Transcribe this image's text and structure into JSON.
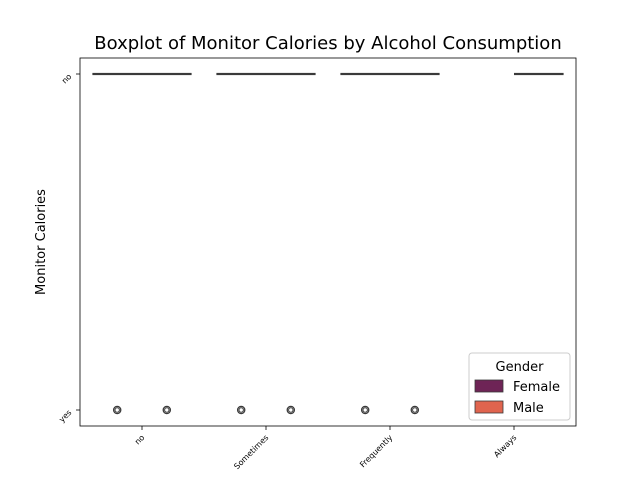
{
  "chart_data": {
    "type": "box",
    "title": "Boxplot of Monitor Calories by Alcohol Consumption",
    "xlabel": "",
    "ylabel": "Monitor Calories",
    "categories": [
      "no",
      "Sometimes",
      "Frequently",
      "Always"
    ],
    "y_categories": [
      "no",
      "yes"
    ],
    "hue_title": "Gender",
    "series": [
      {
        "name": "Female",
        "color": "#6e2456",
        "boxes": [
          {
            "category": "no",
            "q1": "no",
            "median": "no",
            "q3": "no",
            "outliers": [
              "yes"
            ]
          },
          {
            "category": "Sometimes",
            "q1": "no",
            "median": "no",
            "q3": "no",
            "outliers": [
              "yes"
            ]
          },
          {
            "category": "Frequently",
            "q1": "no",
            "median": "no",
            "q3": "no",
            "outliers": [
              "yes"
            ]
          },
          {
            "category": "Always",
            "q1": null,
            "median": null,
            "q3": null,
            "outliers": []
          }
        ]
      },
      {
        "name": "Male",
        "color": "#e0644e",
        "boxes": [
          {
            "category": "no",
            "q1": "no",
            "median": "no",
            "q3": "no",
            "outliers": [
              "yes"
            ]
          },
          {
            "category": "Sometimes",
            "q1": "no",
            "median": "no",
            "q3": "no",
            "outliers": [
              "yes"
            ]
          },
          {
            "category": "Frequently",
            "q1": "no",
            "median": "no",
            "q3": "no",
            "outliers": [
              "yes"
            ]
          },
          {
            "category": "Always",
            "q1": "no",
            "median": "no",
            "q3": "no",
            "outliers": []
          }
        ]
      }
    ],
    "legend": {
      "position": "lower-right"
    },
    "grid": false
  }
}
